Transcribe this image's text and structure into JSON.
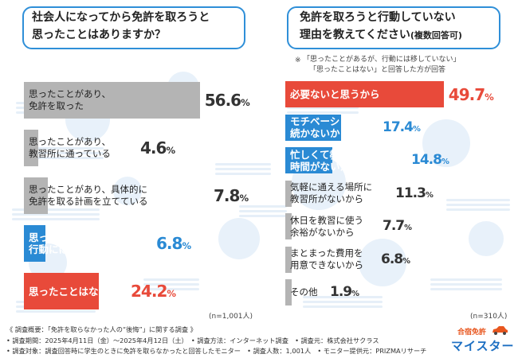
{
  "colors": {
    "accent_blue": "#2f8fd8",
    "gray": "#b4b4b4",
    "red": "#e84a3a",
    "blue_bar": "#2a8ad4"
  },
  "left": {
    "question": [
      "社会人になってから免許を取ろうと",
      "思ったことはありますか？"
    ],
    "n_label": "(n=1,001人)"
  },
  "right": {
    "question": [
      "免許を取ろうと行動していない",
      "理由を教えてください"
    ],
    "question_suffix": "(複数回答可)",
    "note_line1": "「思ったことがあるが、行動には移していない」",
    "note_line2": "「思ったことはない」と回答した方が回答",
    "note_mark": "※",
    "n_label": "(n=310人)"
  },
  "chart_data": [
    {
      "type": "bar",
      "orientation": "horizontal",
      "title": "社会人になってから免許を取ろうと思ったことはありますか？",
      "unit": "%",
      "categories": [
        "思ったことがあり、免許を取った",
        "思ったことがあり、教習所に通っている",
        "思ったことがあり、具体的に免許を取る計画を立てている",
        "思ったことがあるが、行動には移していない",
        "思ったことはない"
      ],
      "label_lines": [
        [
          "思ったことがあり、",
          "免許を取った"
        ],
        [
          "思ったことがあり、",
          "教習所に通っている"
        ],
        [
          "思ったことがあり、具体的に",
          "免許を取る計画を立てている"
        ],
        [
          "思ったことがあるが、",
          "行動には移していない"
        ],
        [
          "思ったことはない"
        ]
      ],
      "values": [
        56.6,
        4.6,
        7.8,
        6.8,
        24.2
      ],
      "value_int": [
        "56",
        "4",
        "7",
        "6",
        "24"
      ],
      "value_dec": [
        ".6",
        ".6",
        ".8",
        ".8",
        ".2"
      ],
      "value_suffix": "%",
      "styles": [
        "gray",
        "gray",
        "gray",
        "blue",
        "red"
      ],
      "n": "n=1,001人"
    },
    {
      "type": "bar",
      "orientation": "horizontal",
      "title": "免許を取ろうと行動していない理由を教えてください(複数回答可)",
      "unit": "%",
      "categories": [
        "必要ないと思うから",
        "モチベーションが続かないから",
        "忙しくて教習所に通う時間がないから",
        "気軽に通える場所に教習所がないから",
        "休日を教習に使う余裕がないから",
        "まとまった費用を用意できないから",
        "その他"
      ],
      "label_lines": [
        [
          "必要ないと思うから"
        ],
        [
          "モチベーションが",
          "続かないから"
        ],
        [
          "忙しくて教習所に通う",
          "時間がないから"
        ],
        [
          "気軽に通える場所に",
          "教習所がないから"
        ],
        [
          "休日を教習に使う",
          "余裕がないから"
        ],
        [
          "まとまった費用を",
          "用意できないから"
        ],
        [
          "その他"
        ]
      ],
      "values": [
        49.7,
        17.4,
        14.8,
        11.3,
        7.7,
        6.8,
        1.9
      ],
      "value_int": [
        "49",
        "17",
        "14",
        "11",
        "7",
        "6",
        "1"
      ],
      "value_dec": [
        ".7",
        ".4",
        ".8",
        ".3",
        ".7",
        ".8",
        ".9"
      ],
      "value_suffix": "%",
      "styles": [
        "red",
        "blue",
        "blue",
        "gray",
        "gray",
        "gray",
        "gray"
      ],
      "n": "n=310人"
    }
  ],
  "footer": {
    "lines": [
      "《 調査概要：「免許を取らなかった人の“後悔”」に関する調査 》",
      "• 調査期間：2025年4月11日（金）〜2025年4月12日（土）　• 調査方法：インターネット調査　• 調査元：株式会社サクラス",
      "• 調査対象：調査回答時に学生のときに免許を取らなかったと回答したモニター　• 調査人数：1,001人　• モニター提供元：PRIZMAリサーチ"
    ],
    "logo_top": "合宿免許",
    "logo_main": "マイスター"
  }
}
